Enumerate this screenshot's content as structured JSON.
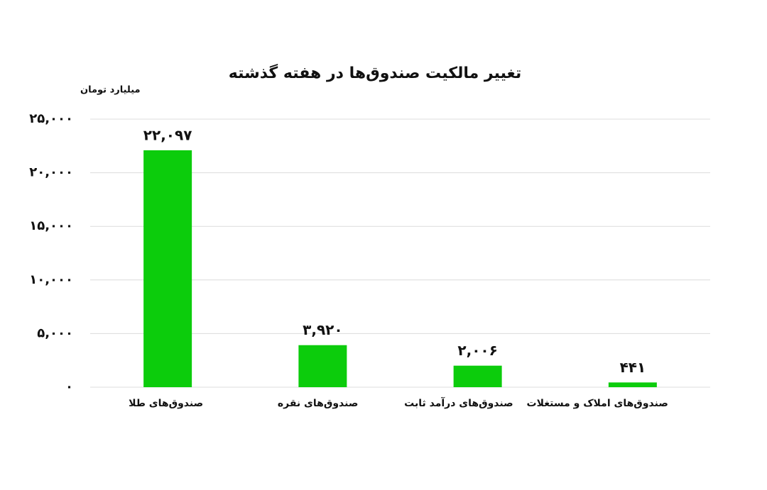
{
  "chart_data": {
    "type": "bar",
    "title": "تغییر مالکیت صندوق‌ها در هفته گذشته",
    "y_label": "میلیارد تومان",
    "categories": [
      "صندوق‌های طلا",
      "صندوق‌های نقره",
      "صندوق‌های درآمد ثابت",
      "صندوق‌های املاک و مستغلات"
    ],
    "values": [
      22097,
      3920,
      2006,
      441
    ],
    "value_labels": [
      "۲۲,۰۹۷",
      "۳,۹۲۰",
      "۲,۰۰۶",
      "۴۴۱"
    ],
    "color": "#0ccc0c",
    "ylim": [
      0,
      25000
    ],
    "yticks": [
      {
        "value": 0,
        "label": "۰"
      },
      {
        "value": 5000,
        "label": "۵,۰۰۰"
      },
      {
        "value": 10000,
        "label": "۱۰,۰۰۰"
      },
      {
        "value": 15000,
        "label": "۱۵,۰۰۰"
      },
      {
        "value": 20000,
        "label": "۲۰,۰۰۰"
      },
      {
        "value": 25000,
        "label": "۲۵,۰۰۰"
      }
    ],
    "grid": true
  }
}
